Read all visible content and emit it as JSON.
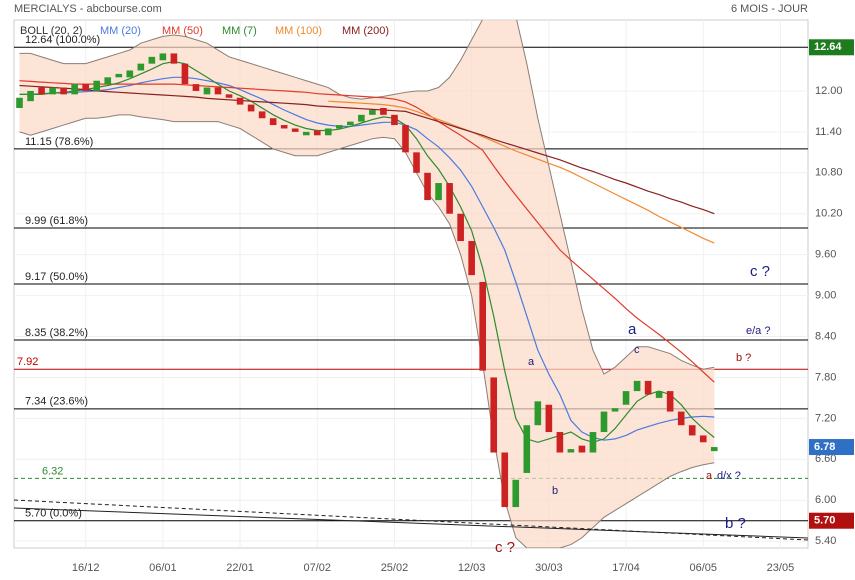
{
  "header": {
    "left": "MERCIALYS - abcbourse.com",
    "right": "6 MOIS - JOUR"
  },
  "chart_data": {
    "type": "candlestick",
    "categories": [
      null,
      null,
      null,
      null,
      null,
      null,
      "16/12",
      null,
      null,
      null,
      null,
      null,
      null,
      "06/01",
      null,
      null,
      null,
      null,
      null,
      null,
      "22/01",
      null,
      null,
      null,
      null,
      null,
      null,
      "07/02",
      null,
      null,
      null,
      null,
      null,
      null,
      "25/02",
      null,
      null,
      null,
      null,
      null,
      null,
      "12/03",
      null,
      null,
      null,
      null,
      null,
      null,
      "30/03",
      null,
      null,
      null,
      null,
      null,
      null,
      "17/04",
      null,
      null,
      null,
      null,
      null,
      null,
      "06/05",
      null,
      null,
      null,
      null,
      null,
      null,
      "23/05",
      null,
      null
    ],
    "candles": {
      "up_color": "#2e9a2e",
      "down_color": "#cc2222",
      "open": [
        11.75,
        11.85,
        12.05,
        11.95,
        12.05,
        11.95,
        12.1,
        12.0,
        12.1,
        12.2,
        12.2,
        12.3,
        12.4,
        12.45,
        12.55,
        12.4,
        12.1,
        11.95,
        12.05,
        11.95,
        11.9,
        11.8,
        11.7,
        11.6,
        11.5,
        11.45,
        11.35,
        11.42,
        11.35,
        11.45,
        11.5,
        11.55,
        11.65,
        11.75,
        11.65,
        11.5,
        11.1,
        10.8,
        10.4,
        10.65,
        10.2,
        9.8,
        9.2,
        7.8,
        6.7,
        5.9,
        6.4,
        7.1,
        7.4,
        7.0,
        6.7,
        6.8,
        6.7,
        7.0,
        7.3,
        7.4,
        7.6,
        7.75,
        7.5,
        7.6,
        7.3,
        7.1,
        6.95,
        6.72,
        null,
        null,
        null,
        null,
        null,
        null,
        null,
        null
      ],
      "close": [
        11.9,
        12.0,
        11.95,
        12.05,
        11.95,
        12.1,
        12.0,
        12.15,
        12.2,
        12.25,
        12.3,
        12.4,
        12.5,
        12.55,
        12.4,
        12.1,
        12.0,
        12.05,
        11.95,
        11.9,
        11.8,
        11.7,
        11.6,
        11.5,
        11.45,
        11.4,
        11.4,
        11.35,
        11.45,
        11.5,
        11.55,
        11.65,
        11.72,
        11.65,
        11.5,
        11.1,
        10.8,
        10.4,
        10.65,
        10.2,
        9.8,
        9.3,
        7.9,
        6.7,
        5.9,
        6.3,
        7.1,
        7.45,
        7.0,
        6.7,
        6.75,
        6.7,
        7.0,
        7.3,
        7.35,
        7.6,
        7.75,
        7.55,
        7.6,
        7.3,
        7.1,
        6.95,
        6.85,
        6.78,
        null,
        null,
        null,
        null,
        null,
        null,
        null,
        null
      ]
    },
    "band": {
      "name": "BOLL (20, 2)",
      "color": "#fbd9c6",
      "line_color": "#8c7d75",
      "upper": [
        12.55,
        12.55,
        12.5,
        12.45,
        12.4,
        12.4,
        12.4,
        12.45,
        12.5,
        12.55,
        12.6,
        12.7,
        12.75,
        12.8,
        12.82,
        12.8,
        12.75,
        12.7,
        12.6,
        12.5,
        12.45,
        12.4,
        12.35,
        12.3,
        12.25,
        12.2,
        12.15,
        12.1,
        12.05,
        11.95,
        11.9,
        11.88,
        11.9,
        11.92,
        11.95,
        11.98,
        12.0,
        12.0,
        12.05,
        12.2,
        12.45,
        12.75,
        13.05,
        13.2,
        13.3,
        13.1,
        12.4,
        11.6,
        10.9,
        10.2,
        9.5,
        8.8,
        8.2,
        7.85,
        7.95,
        8.1,
        8.25,
        8.25,
        8.2,
        8.15,
        8.05,
        7.98,
        7.92,
        7.95,
        null,
        null,
        null,
        null,
        null,
        null,
        null,
        null
      ],
      "lower": [
        11.4,
        11.35,
        11.4,
        11.45,
        11.5,
        11.55,
        11.6,
        11.6,
        11.62,
        11.65,
        11.65,
        11.62,
        11.6,
        11.58,
        11.55,
        11.55,
        11.55,
        11.55,
        11.55,
        11.5,
        11.45,
        11.35,
        11.25,
        11.15,
        11.1,
        11.05,
        11.05,
        11.05,
        11.1,
        11.15,
        11.2,
        11.25,
        11.3,
        11.32,
        11.3,
        11.1,
        10.8,
        10.5,
        10.3,
        10.05,
        9.6,
        9.0,
        8.0,
        6.9,
        6.0,
        5.45,
        5.3,
        5.3,
        5.3,
        5.3,
        5.35,
        5.45,
        5.6,
        5.75,
        5.85,
        5.95,
        6.05,
        6.15,
        6.25,
        6.35,
        6.42,
        6.48,
        6.52,
        6.55,
        null,
        null,
        null,
        null,
        null,
        null,
        null,
        null
      ]
    },
    "series": [
      {
        "name": "MM (20)",
        "color": "#4a7be0",
        "values": [
          11.95,
          11.95,
          11.96,
          11.97,
          11.97,
          11.98,
          11.99,
          12.0,
          12.02,
          12.05,
          12.08,
          12.12,
          12.15,
          12.18,
          12.2,
          12.2,
          12.18,
          12.15,
          12.12,
          12.08,
          12.02,
          11.95,
          11.88,
          11.8,
          11.72,
          11.65,
          11.58,
          11.53,
          11.5,
          11.48,
          11.48,
          11.5,
          11.52,
          11.54,
          11.54,
          11.5,
          11.43,
          11.3,
          11.18,
          11.02,
          10.84,
          10.6,
          10.3,
          10.0,
          9.67,
          9.2,
          8.7,
          8.2,
          7.85,
          7.55,
          7.17,
          7.0,
          6.92,
          6.88,
          6.9,
          6.95,
          7.03,
          7.08,
          7.13,
          7.17,
          7.2,
          7.22,
          7.23,
          7.22,
          null,
          null,
          null,
          null,
          null,
          null,
          null,
          null
        ]
      },
      {
        "name": "MM (50)",
        "color": "#e03a2a",
        "values": [
          12.15,
          12.14,
          12.13,
          12.12,
          12.11,
          12.1,
          12.1,
          12.1,
          12.1,
          12.1,
          12.1,
          12.1,
          12.1,
          12.1,
          12.1,
          12.09,
          12.08,
          12.07,
          12.06,
          12.05,
          12.04,
          12.03,
          12.02,
          12.01,
          12.0,
          11.99,
          11.98,
          11.96,
          11.95,
          11.94,
          11.93,
          11.92,
          11.91,
          11.9,
          11.88,
          11.84,
          11.76,
          11.66,
          11.55,
          11.45,
          11.35,
          11.24,
          11.13,
          10.9,
          10.68,
          10.47,
          10.27,
          10.07,
          9.87,
          9.67,
          9.52,
          9.38,
          9.24,
          9.1,
          8.96,
          8.81,
          8.67,
          8.55,
          8.43,
          8.3,
          8.17,
          8.03,
          7.88,
          7.73,
          null,
          null,
          null,
          null,
          null,
          null,
          null,
          null
        ]
      },
      {
        "name": "MM (7)",
        "color": "#2e8b2e",
        "values": [
          11.95,
          11.95,
          11.95,
          11.97,
          11.98,
          12.0,
          12.02,
          12.05,
          12.08,
          12.12,
          12.18,
          12.25,
          12.32,
          12.4,
          12.43,
          12.4,
          12.3,
          12.2,
          12.1,
          12.0,
          11.93,
          11.85,
          11.75,
          11.65,
          11.57,
          11.5,
          11.45,
          11.42,
          11.42,
          11.44,
          11.48,
          11.53,
          11.58,
          11.62,
          11.6,
          11.5,
          11.3,
          11.05,
          10.85,
          10.6,
          10.3,
          9.95,
          9.4,
          8.7,
          7.9,
          7.2,
          6.9,
          6.85,
          6.9,
          6.95,
          7.0,
          6.9,
          6.85,
          6.9,
          7.05,
          7.25,
          7.45,
          7.55,
          7.6,
          7.55,
          7.4,
          7.2,
          7.05,
          6.92,
          null,
          null,
          null,
          null,
          null,
          null,
          null,
          null
        ]
      },
      {
        "name": "MM (100)",
        "color": "#f08a30",
        "values": [
          null,
          null,
          null,
          null,
          null,
          null,
          null,
          null,
          null,
          null,
          null,
          null,
          null,
          null,
          null,
          null,
          null,
          null,
          null,
          null,
          null,
          null,
          null,
          null,
          null,
          null,
          null,
          null,
          11.85,
          11.84,
          11.83,
          11.82,
          11.81,
          11.8,
          11.78,
          11.75,
          11.7,
          11.64,
          11.58,
          11.52,
          11.46,
          11.4,
          11.33,
          11.26,
          11.19,
          11.12,
          11.06,
          11.0,
          10.94,
          10.88,
          10.81,
          10.73,
          10.65,
          10.57,
          10.49,
          10.41,
          10.33,
          10.25,
          10.16,
          10.08,
          10.0,
          9.92,
          9.84,
          9.77,
          null,
          null,
          null,
          null,
          null,
          null,
          null,
          null
        ]
      },
      {
        "name": "MM (200)",
        "color": "#8b2020",
        "values": [
          12.08,
          12.07,
          12.06,
          12.05,
          12.04,
          12.03,
          12.02,
          12.0,
          11.99,
          11.98,
          11.97,
          11.96,
          11.95,
          11.94,
          11.93,
          11.92,
          11.91,
          11.89,
          11.88,
          11.87,
          11.86,
          11.85,
          11.84,
          11.83,
          11.82,
          11.81,
          11.8,
          11.78,
          11.77,
          11.76,
          11.75,
          11.74,
          11.73,
          11.72,
          11.71,
          11.7,
          11.65,
          11.6,
          11.55,
          11.5,
          11.45,
          11.4,
          11.35,
          11.29,
          11.24,
          11.19,
          11.14,
          11.09,
          11.04,
          10.99,
          10.93,
          10.87,
          10.82,
          10.76,
          10.7,
          10.65,
          10.59,
          10.53,
          10.48,
          10.42,
          10.37,
          10.31,
          10.26,
          10.2,
          null,
          null,
          null,
          null,
          null,
          null,
          null,
          null
        ]
      }
    ],
    "ylim": [
      5.3,
      13.04
    ],
    "yticks": [
      {
        "value": 5.4,
        "label": "5.40"
      },
      {
        "value": 6,
        "label": "6.00"
      },
      {
        "value": 6.6,
        "label": "6.60"
      },
      {
        "value": 7.2,
        "label": "7.20"
      },
      {
        "value": 7.8,
        "label": "7.80"
      },
      {
        "value": 8.4,
        "label": "8.40"
      },
      {
        "value": 9,
        "label": "9.00"
      },
      {
        "value": 9.6,
        "label": "9.60"
      },
      {
        "value": 10.2,
        "label": "10.20"
      },
      {
        "value": 10.8,
        "label": "10.80"
      },
      {
        "value": 11.4,
        "label": "11.40"
      },
      {
        "value": 12,
        "label": "12.00"
      }
    ],
    "grid": true,
    "levels": [
      {
        "value": 12.64,
        "label": "12.64  (100.0%)",
        "color": "#000000"
      },
      {
        "value": 11.15,
        "label": "11.15  (78.6%)",
        "color": "#000000"
      },
      {
        "value": 9.99,
        "label": "9.99  (61.8%)",
        "color": "#000000"
      },
      {
        "value": 9.17,
        "label": "9.17  (50.0%)",
        "color": "#000000"
      },
      {
        "value": 8.35,
        "label": "8.35  (38.2%)",
        "color": "#000000"
      },
      {
        "value": 7.92,
        "label": "7.92",
        "color": "#c00000"
      },
      {
        "value": 7.34,
        "label": "7.34  (23.6%)",
        "color": "#000000"
      },
      {
        "value": 6.32,
        "label": "6.32",
        "color": "#2e8b2e",
        "dash": true
      },
      {
        "value": 5.7,
        "label": "5.70  (0.0%)",
        "color": "#000000"
      }
    ],
    "tags": [
      {
        "value": 12.64,
        "color": "#1e7b1e"
      },
      {
        "value": 6.78,
        "color": "#2f6fc4"
      },
      {
        "value": 5.7,
        "label": "5.70",
        "color": "#b01010"
      }
    ],
    "annotations": [
      {
        "text": "c ?",
        "color": "#1c1c80"
      },
      {
        "text": "e/a ?",
        "color": "#1c1c80"
      },
      {
        "text": "a",
        "color": "#1c1c80"
      },
      {
        "text": "c",
        "color": "#1c1c80"
      },
      {
        "text": "a",
        "color": "#1c1c80"
      },
      {
        "text": "b ?",
        "color": "#a01010"
      },
      {
        "text": "a",
        "color": "#a01010"
      },
      {
        "text": "d/x ?",
        "color": "#1c1c80"
      },
      {
        "text": "b",
        "color": "#1c1c80"
      },
      {
        "text": "c ?",
        "color": "#a01010"
      },
      {
        "text": "b ?",
        "color": "#1c1c80"
      }
    ]
  }
}
